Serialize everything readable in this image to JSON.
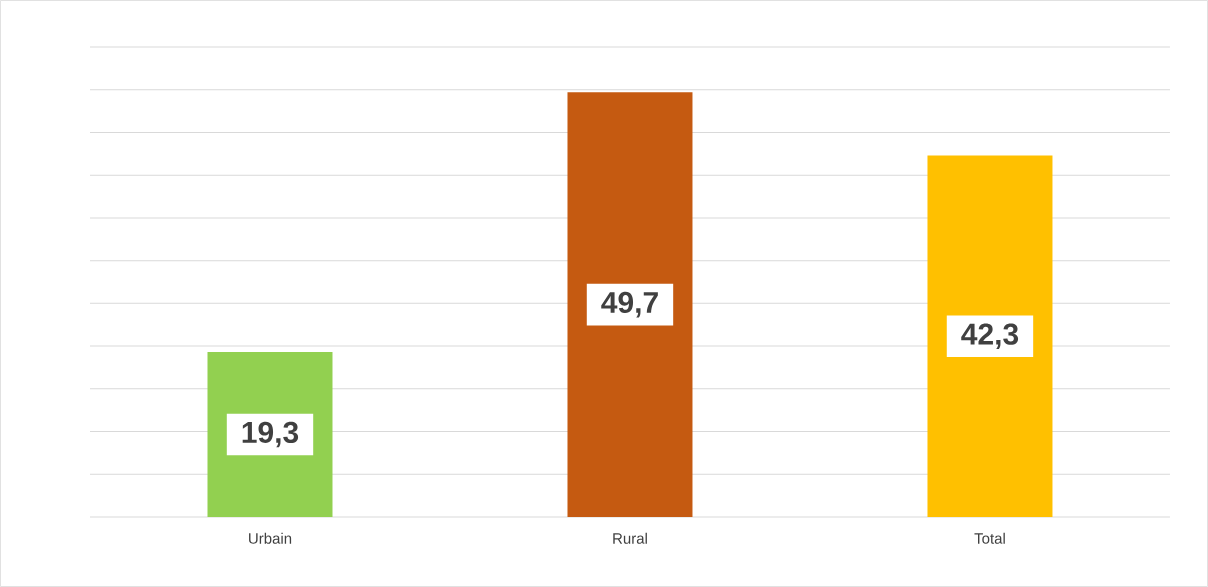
{
  "chart_data": {
    "type": "bar",
    "categories": [
      "Urbain",
      "Rural",
      "Total"
    ],
    "values": [
      19.3,
      49.7,
      42.3
    ],
    "colors": [
      "#92d050",
      "#c55a11",
      "#ffc000"
    ],
    "value_labels": [
      "19,3",
      "49,7",
      "42,3"
    ],
    "ylim": [
      0,
      55
    ],
    "yticks": [
      {
        "value": 0,
        "label": null
      },
      {
        "value": 5,
        "label": null
      },
      {
        "value": 10,
        "label": null
      },
      {
        "value": 15,
        "label": null
      },
      {
        "value": 20,
        "label": null
      },
      {
        "value": 25,
        "label": null
      },
      {
        "value": 30,
        "label": null
      },
      {
        "value": 35,
        "label": null
      },
      {
        "value": 40,
        "label": null
      },
      {
        "value": 45,
        "label": null
      },
      {
        "value": 50,
        "label": null
      },
      {
        "value": 55,
        "label": null
      }
    ],
    "tick_labels": "x",
    "grid": "y"
  }
}
